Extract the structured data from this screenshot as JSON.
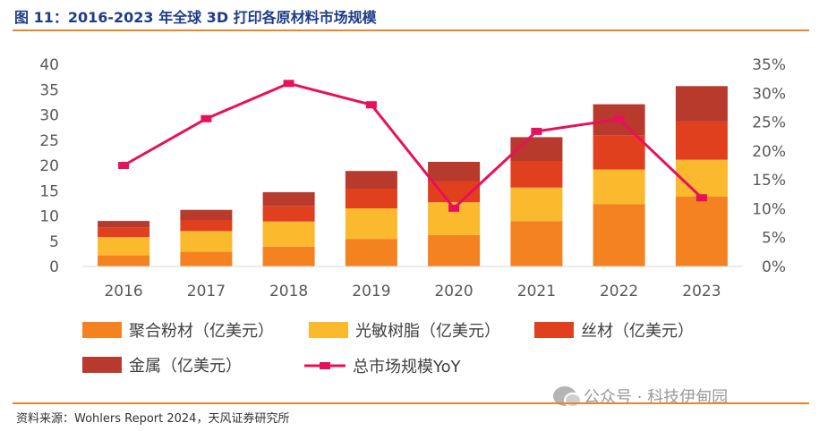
{
  "figure": {
    "title": "图 11：2016-2023 年全球 3D 打印各原材料市场规模",
    "source": "资料来源：Wohlers Report 2024，天风证券研究所",
    "watermark": "公众号 · 科技伊甸园"
  },
  "chart_data": {
    "type": "bar",
    "stacked": true,
    "categories": [
      "2016",
      "2017",
      "2018",
      "2019",
      "2020",
      "2021",
      "2022",
      "2023"
    ],
    "series": [
      {
        "name": "聚合粉材（亿美元）",
        "values": [
          2.2,
          2.9,
          3.9,
          5.4,
          6.2,
          9.0,
          12.3,
          13.8
        ],
        "color": "#f58220"
      },
      {
        "name": "光敏树脂（亿美元）",
        "values": [
          3.6,
          4.1,
          5.0,
          6.1,
          6.5,
          6.6,
          6.9,
          7.3
        ],
        "color": "#fbb92e"
      },
      {
        "name": "丝材（亿美元）",
        "values": [
          1.9,
          2.2,
          3.1,
          3.9,
          4.2,
          5.3,
          6.8,
          7.6
        ],
        "color": "#e1401f"
      },
      {
        "name": "金属（亿美元）",
        "values": [
          1.3,
          2.0,
          2.7,
          3.5,
          3.8,
          4.7,
          6.1,
          7.0
        ],
        "color": "#b73a2c"
      }
    ],
    "line_series": {
      "name": "总市场规模YoY",
      "axis": "right",
      "values": [
        17.5,
        25.6,
        31.7,
        28.0,
        10.1,
        23.4,
        25.5,
        11.9
      ],
      "unit": "%",
      "color": "#e8105a"
    },
    "y_left": {
      "min": 0,
      "max": 40,
      "ticks": [
        "0",
        "5",
        "10",
        "15",
        "20",
        "25",
        "30",
        "35",
        "40"
      ]
    },
    "y_right": {
      "min": 0,
      "max": 35,
      "ticks": [
        "0%",
        "5%",
        "10%",
        "15%",
        "20%",
        "25%",
        "30%",
        "35%"
      ]
    },
    "grid": false,
    "legend_position": "bottom"
  }
}
